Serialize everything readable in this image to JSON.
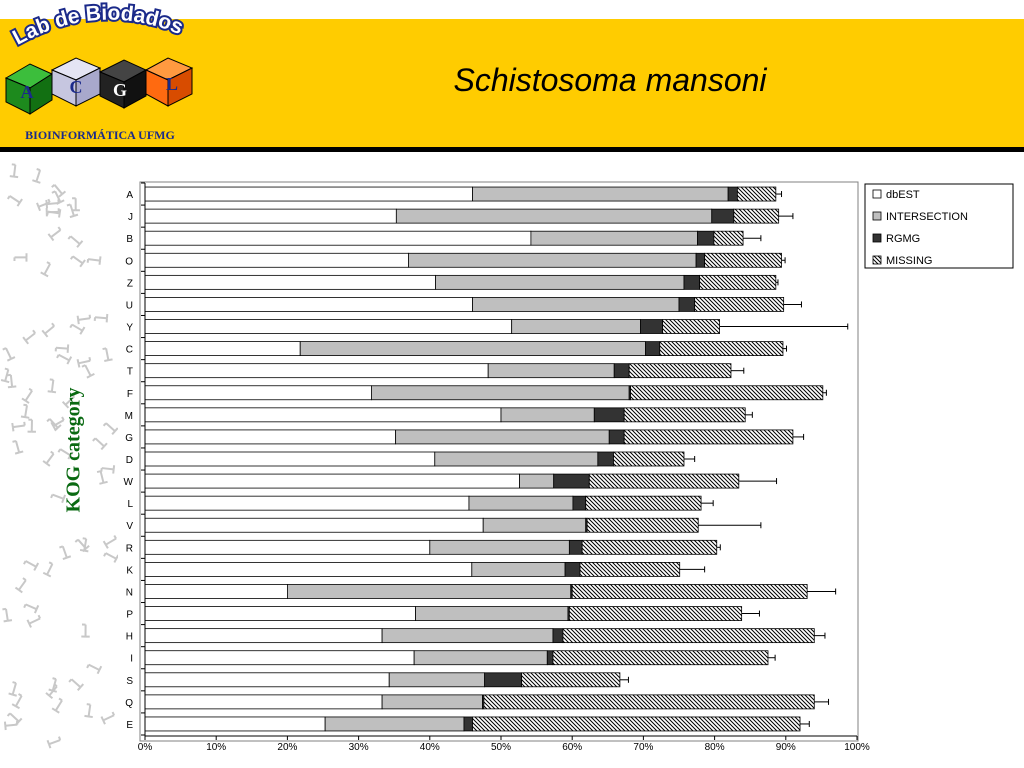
{
  "header": {
    "title": "Schistosoma mansoni"
  },
  "logo": {
    "arc_text": "Lab de Biodados",
    "letters": [
      "A",
      "C",
      "G",
      "L"
    ],
    "subtitle": "BIOINFORMÁTICA UFMG"
  },
  "colors": {
    "header_bg": "#FFCC00",
    "dbEST": "#ffffff",
    "INTERSECTION": "#bfbfbf",
    "RGMG": "#333333",
    "MISSING": "hatched",
    "ylabel": "#0a6a12"
  },
  "chart_data": {
    "type": "bar",
    "orientation": "horizontal",
    "stacked": true,
    "title": "",
    "xlabel": "",
    "ylabel": "KOG category",
    "xlim": [
      0,
      100
    ],
    "x_ticks": [
      "0%",
      "10%",
      "20%",
      "30%",
      "40%",
      "50%",
      "60%",
      "70%",
      "80%",
      "90%",
      "100%"
    ],
    "grid": false,
    "legend_position": "top-right",
    "categories": [
      "A",
      "J",
      "B",
      "O",
      "Z",
      "U",
      "Y",
      "C",
      "T",
      "F",
      "M",
      "G",
      "D",
      "W",
      "L",
      "V",
      "R",
      "K",
      "N",
      "P",
      "H",
      "I",
      "S",
      "Q",
      "E"
    ],
    "series": [
      {
        "name": "dbEST",
        "values": [
          46.0,
          35.3,
          54.2,
          37.0,
          40.8,
          46.0,
          51.5,
          21.8,
          48.2,
          31.8,
          50.0,
          35.2,
          40.7,
          52.6,
          45.5,
          47.5,
          40.0,
          45.9,
          20.0,
          38.0,
          33.3,
          37.8,
          34.3,
          33.3,
          25.3
        ]
      },
      {
        "name": "INTERSECTION",
        "values": [
          35.9,
          44.3,
          23.4,
          40.4,
          34.9,
          29.0,
          18.1,
          48.5,
          17.7,
          36.2,
          13.1,
          30.0,
          22.9,
          4.8,
          14.6,
          14.4,
          19.6,
          13.1,
          39.8,
          21.4,
          24.0,
          18.7,
          13.4,
          14.1,
          19.5
        ]
      },
      {
        "name": "RGMG",
        "values": [
          1.3,
          3.1,
          2.3,
          1.2,
          2.2,
          2.2,
          3.1,
          2.0,
          2.1,
          0.2,
          4.2,
          2.1,
          2.2,
          5.0,
          1.8,
          0.2,
          1.8,
          2.1,
          0.2,
          0.2,
          1.4,
          0.8,
          5.2,
          0.2,
          1.2
        ]
      },
      {
        "name": "MISSING",
        "values": [
          5.4,
          6.3,
          4.1,
          10.8,
          10.7,
          12.5,
          8.0,
          17.3,
          14.3,
          27.0,
          17.0,
          23.7,
          9.9,
          21.0,
          16.2,
          15.6,
          18.9,
          14.0,
          33.0,
          24.2,
          35.3,
          30.2,
          13.8,
          46.4,
          46.0
        ]
      }
    ],
    "error_plus": [
      0.8,
      2.0,
      2.5,
      0.5,
      0.3,
      2.5,
      18.0,
      0.5,
      1.8,
      0.5,
      1.0,
      1.5,
      1.5,
      5.3,
      1.7,
      8.8,
      0.5,
      3.5,
      4.0,
      2.5,
      1.5,
      1.0,
      1.2,
      2.0,
      1.3
    ]
  }
}
